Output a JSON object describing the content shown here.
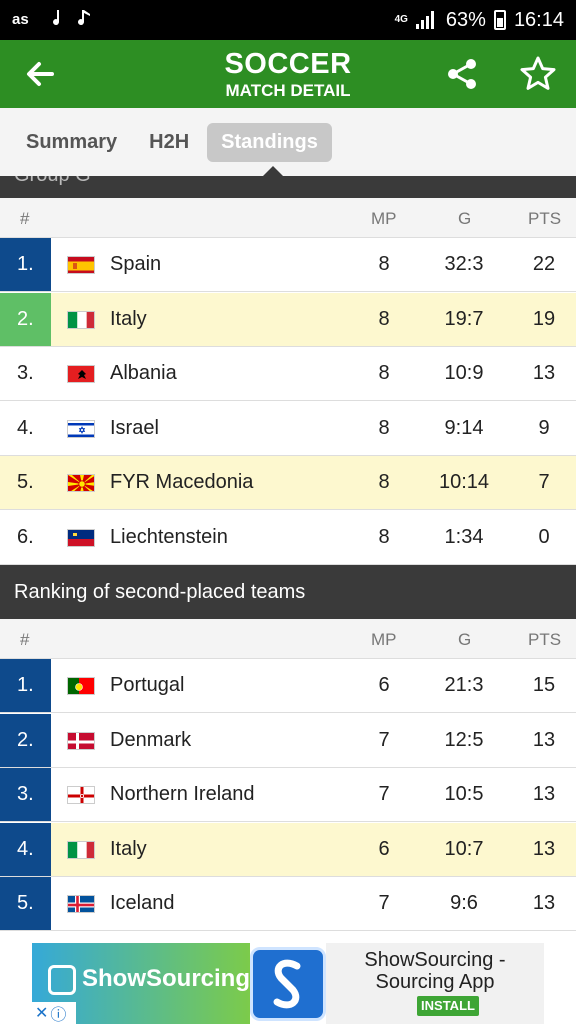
{
  "status_bar": {
    "net": "4G",
    "battery": "63%",
    "time": "16:14"
  },
  "app_bar": {
    "title": "SOCCER",
    "subtitle": "MATCH DETAIL"
  },
  "tabs": [
    {
      "label": "Summary",
      "active": false
    },
    {
      "label": "H2H",
      "active": false
    },
    {
      "label": "Standings",
      "active": true
    }
  ],
  "group_header": "Group G",
  "columns": {
    "pos": "#",
    "mp": "MP",
    "g": "G",
    "pts": "PTS"
  },
  "group_rows": [
    {
      "pos": "1.",
      "team": "Spain",
      "flag": "spain",
      "mp": "8",
      "g": "32:3",
      "pts": "22"
    },
    {
      "pos": "2.",
      "team": "Italy",
      "flag": "italy",
      "mp": "8",
      "g": "19:7",
      "pts": "19"
    },
    {
      "pos": "3.",
      "team": "Albania",
      "flag": "albania",
      "mp": "8",
      "g": "10:9",
      "pts": "13"
    },
    {
      "pos": "4.",
      "team": "Israel",
      "flag": "israel",
      "mp": "8",
      "g": "9:14",
      "pts": "9"
    },
    {
      "pos": "5.",
      "team": "FYR Macedonia",
      "flag": "macedonia",
      "mp": "8",
      "g": "10:14",
      "pts": "7"
    },
    {
      "pos": "6.",
      "team": "Liechtenstein",
      "flag": "liechtenstein",
      "mp": "8",
      "g": "1:34",
      "pts": "0"
    }
  ],
  "ranking_header": "Ranking of second-placed teams",
  "ranking_rows": [
    {
      "pos": "1.",
      "team": "Portugal",
      "flag": "portugal",
      "mp": "6",
      "g": "21:3",
      "pts": "15"
    },
    {
      "pos": "2.",
      "team": "Denmark",
      "flag": "denmark",
      "mp": "7",
      "g": "12:5",
      "pts": "13"
    },
    {
      "pos": "3.",
      "team": "Northern Ireland",
      "flag": "northern-ireland",
      "mp": "7",
      "g": "10:5",
      "pts": "13"
    },
    {
      "pos": "4.",
      "team": "Italy",
      "flag": "italy",
      "mp": "6",
      "g": "10:7",
      "pts": "13"
    },
    {
      "pos": "5.",
      "team": "Iceland",
      "flag": "iceland",
      "mp": "7",
      "g": "9:6",
      "pts": "13"
    }
  ],
  "ad": {
    "brand": "ShowSourcing",
    "app_name_line1": "ShowSourcing -",
    "app_name_line2": "Sourcing App",
    "install_label": "INSTALL"
  },
  "colors": {
    "appbar": "#2d8e23",
    "rank_blue": "#0e4a8c",
    "rank_green": "#5fbf66",
    "highlight": "#fdf8cf"
  }
}
